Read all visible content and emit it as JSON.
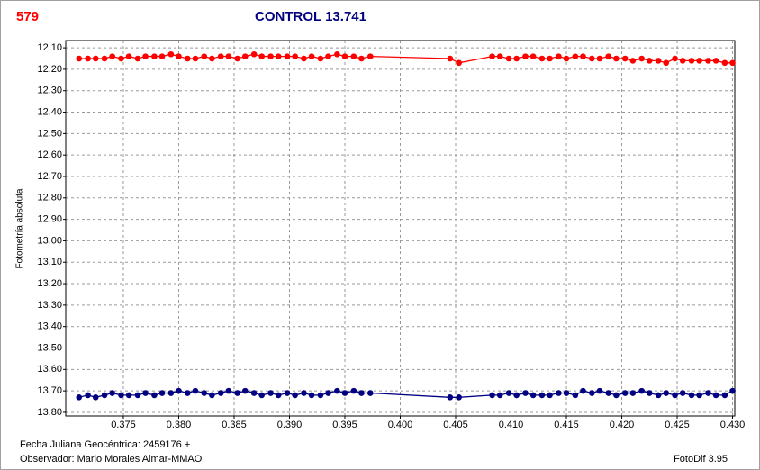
{
  "chart_data": {
    "type": "line",
    "title": "CONTROL 13.741",
    "star_label": "579",
    "y_label": "Fotometría absoluta",
    "x_label": "Fecha Juliana Geocéntrica: 2459176 +",
    "observer": "Observador: Mario Morales Aimar-MMAO",
    "software": "FotoDif 3.95",
    "xlim": [
      0.3698,
      0.4302
    ],
    "ylim": [
      12.066,
      13.817
    ],
    "y_inverted": true,
    "grid": true,
    "xticks": [
      0.375,
      {
        "value": 0.38,
        "label": "0.380"
      },
      0.385,
      {
        "value": 0.39,
        "label": "0.390"
      },
      0.395,
      {
        "value": 0.4,
        "label": "0.400"
      },
      0.405,
      {
        "value": 0.41,
        "label": "0.410"
      },
      0.415,
      {
        "value": 0.42,
        "label": "0.420"
      },
      0.425,
      {
        "value": 0.43,
        "label": "0.430"
      }
    ],
    "yticks": [
      {
        "value": 12.1,
        "label": "12.10"
      },
      {
        "value": 12.2,
        "label": "12.20"
      },
      {
        "value": 12.3,
        "label": "12.30"
      },
      {
        "value": 12.4,
        "label": "12.40"
      },
      {
        "value": 12.5,
        "label": "12.50"
      },
      {
        "value": 12.6,
        "label": "12.60"
      },
      {
        "value": 12.7,
        "label": "12.70"
      },
      {
        "value": 12.8,
        "label": "12.80"
      },
      {
        "value": 12.9,
        "label": "12.90"
      },
      {
        "value": 13.0,
        "label": "13.00"
      },
      {
        "value": 13.1,
        "label": "13.10"
      },
      {
        "value": 13.2,
        "label": "13.20"
      },
      {
        "value": 13.3,
        "label": "13.30"
      },
      {
        "value": 13.4,
        "label": "13.40"
      },
      {
        "value": 13.5,
        "label": "13.50"
      },
      {
        "value": 13.6,
        "label": "13.60"
      },
      {
        "value": 13.7,
        "label": "13.70"
      },
      {
        "value": 13.8,
        "label": "13.80"
      }
    ],
    "x": [
      0.371,
      0.3718,
      0.3725,
      0.3733,
      0.374,
      0.3748,
      0.3755,
      0.3763,
      0.377,
      0.3778,
      0.3785,
      0.3793,
      0.38,
      0.3808,
      0.3815,
      0.3823,
      0.383,
      0.3838,
      0.3845,
      0.3853,
      0.386,
      0.3868,
      0.3875,
      0.3883,
      0.389,
      0.3898,
      0.3905,
      0.3913,
      0.392,
      0.3928,
      0.3935,
      0.3943,
      0.395,
      0.3958,
      0.3965,
      0.3973,
      0.4045,
      0.4053,
      0.4083,
      0.409,
      0.4098,
      0.4105,
      0.4113,
      0.412,
      0.4128,
      0.4135,
      0.4143,
      0.415,
      0.4158,
      0.4165,
      0.4173,
      0.418,
      0.4188,
      0.4195,
      0.4203,
      0.421,
      0.4218,
      0.4225,
      0.4233,
      0.424,
      0.4248,
      0.4255,
      0.4263,
      0.427,
      0.4278,
      0.4285,
      0.4293,
      0.43
    ],
    "series": [
      {
        "color": "#ff0000",
        "values": [
          12.15,
          12.15,
          12.15,
          12.15,
          12.14,
          12.15,
          12.14,
          12.15,
          12.14,
          12.14,
          12.14,
          12.13,
          12.14,
          12.15,
          12.15,
          12.14,
          12.15,
          12.14,
          12.14,
          12.15,
          12.14,
          12.13,
          12.14,
          12.14,
          12.14,
          12.14,
          12.14,
          12.15,
          12.14,
          12.15,
          12.14,
          12.13,
          12.14,
          12.14,
          12.15,
          12.14,
          12.15,
          12.17,
          12.14,
          12.14,
          12.15,
          12.15,
          12.14,
          12.14,
          12.15,
          12.15,
          12.14,
          12.15,
          12.14,
          12.14,
          12.15,
          12.15,
          12.14,
          12.15,
          12.15,
          12.16,
          12.15,
          12.16,
          12.16,
          12.17,
          12.15,
          12.16,
          12.16,
          12.16,
          12.16,
          12.16,
          12.17,
          12.17
        ]
      },
      {
        "color": "#000080",
        "values": [
          13.73,
          13.72,
          13.73,
          13.72,
          13.71,
          13.72,
          13.72,
          13.72,
          13.71,
          13.72,
          13.71,
          13.71,
          13.7,
          13.71,
          13.7,
          13.71,
          13.72,
          13.71,
          13.7,
          13.71,
          13.7,
          13.71,
          13.72,
          13.71,
          13.72,
          13.71,
          13.72,
          13.71,
          13.72,
          13.72,
          13.71,
          13.7,
          13.71,
          13.7,
          13.71,
          13.71,
          13.73,
          13.73,
          13.72,
          13.72,
          13.71,
          13.72,
          13.71,
          13.72,
          13.72,
          13.72,
          13.71,
          13.71,
          13.72,
          13.7,
          13.71,
          13.7,
          13.71,
          13.72,
          13.71,
          13.71,
          13.7,
          13.71,
          13.72,
          13.71,
          13.72,
          13.71,
          13.72,
          13.72,
          13.71,
          13.72,
          13.72,
          13.7
        ]
      }
    ]
  }
}
